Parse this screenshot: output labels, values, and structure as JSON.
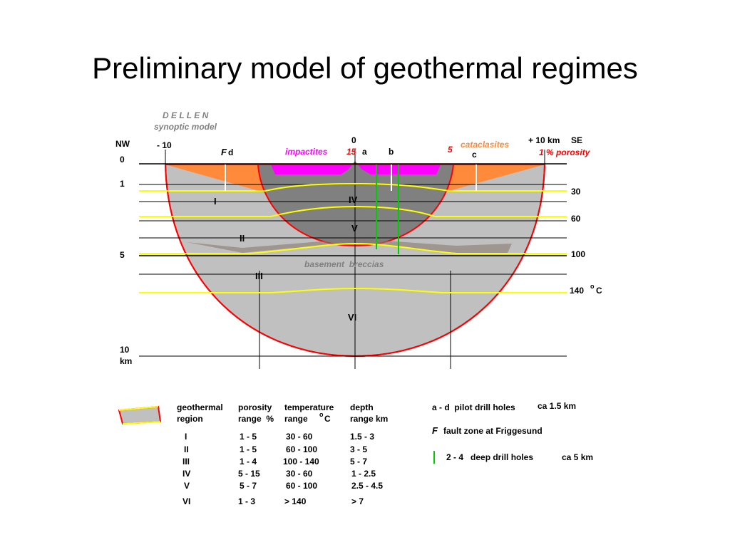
{
  "title": "Preliminary model of geothermal regimes",
  "header": {
    "name": "D E L L E N",
    "subtitle": "synoptic model"
  },
  "axis": {
    "dir_left": "NW",
    "dir_right": "SE",
    "x_ticks": [
      "- 10",
      "0",
      "+ 10 km"
    ],
    "depth_ticks": [
      "0",
      "1",
      "5",
      "10",
      "km"
    ]
  },
  "labels": {
    "impactites": "impactites",
    "cataclasites": "cataclasites",
    "porosity_15": "15",
    "porosity_5": "5",
    "porosity_1": "1 % porosity",
    "fault": "F",
    "fault_d": "d",
    "hole_a": "a",
    "hole_b": "b",
    "hole_c": "c",
    "basement": "basement  breccias"
  },
  "regions": [
    "I",
    "II",
    "III",
    "IV",
    "V",
    "VI"
  ],
  "isotherms": [
    "30",
    "60",
    "100",
    "140",
    "C"
  ],
  "isotherm_unit_sup": "o",
  "legend": {
    "headers": [
      [
        "geothermal",
        "region"
      ],
      [
        "porosity",
        "range  %"
      ],
      [
        "temperature",
        "range  "
      ],
      [
        "depth",
        "range km"
      ]
    ],
    "temp_unit": "C",
    "temp_sup": "o",
    "rows": [
      [
        "I",
        "1 - 5",
        "30 - 60",
        "1.5 - 3"
      ],
      [
        "II",
        "1 - 5",
        "60 - 100",
        "3 - 5"
      ],
      [
        "III",
        "1 - 4",
        "100 - 140",
        "5 - 7"
      ],
      [
        "IV",
        "5 - 15",
        "30 - 60",
        "1 - 2.5"
      ],
      [
        "V",
        "5 - 7",
        "60 - 100",
        "2.5 - 4.5"
      ],
      [
        "VI",
        "1 - 3",
        "> 140",
        "> 7"
      ]
    ],
    "notes": {
      "pilot": "a - d  pilot drill holes",
      "pilot_depth": "ca 1.5 km",
      "fault_letter": "F",
      "fault_text": "fault zone at Friggesund",
      "deep": "2 - 4   deep drill holes",
      "deep_depth": "ca 5 km"
    }
  },
  "colors": {
    "orange": "#ff8a3c",
    "magenta": "#ff00ff",
    "dark_gray": "#808080",
    "light_gray": "#c0c0c0",
    "red": "#ff0000",
    "yellow": "#ffff00",
    "green": "#00cc00"
  }
}
